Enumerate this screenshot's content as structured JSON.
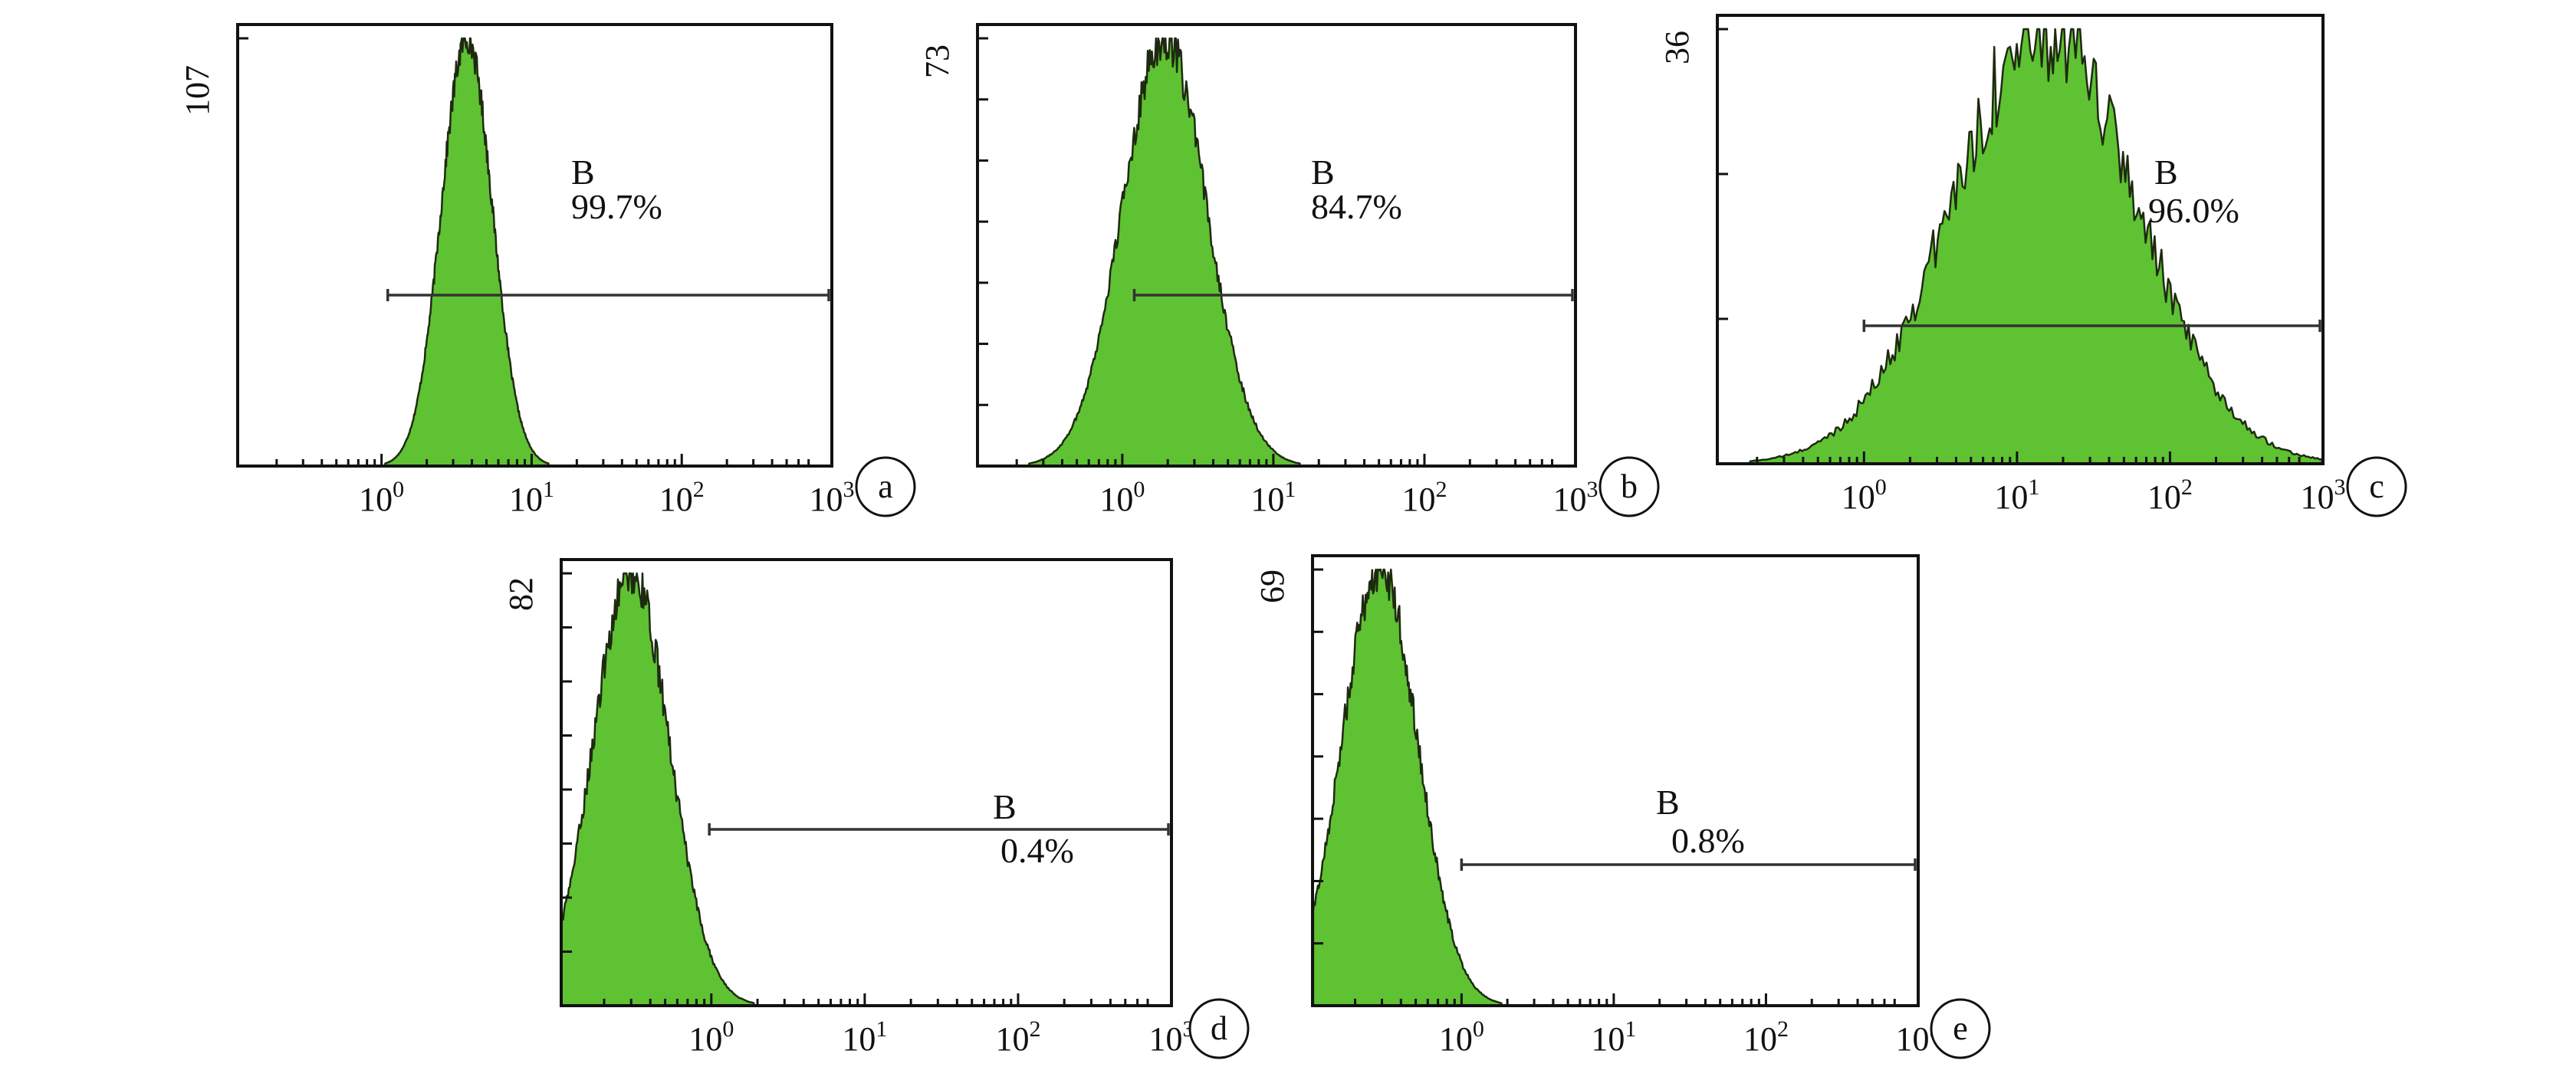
{
  "colors": {
    "fill": "#5ec232",
    "outline": "#1e2a10",
    "axis": "#111111"
  },
  "chart_data": [
    {
      "type": "area",
      "panel_label": "a",
      "x_scale": "log",
      "x_ticks": [
        {
          "value": 1,
          "base": "10",
          "exp": "0"
        },
        {
          "value": 10,
          "base": "10",
          "exp": "1"
        },
        {
          "value": 100,
          "base": "10",
          "exp": "2"
        },
        {
          "value": 1000,
          "base": "10",
          "exp": "3"
        }
      ],
      "xlim": [
        0.11,
        1000
      ],
      "ymax": 107,
      "ymax_label": "107",
      "y_tick_count": 1,
      "gate": {
        "name": "B",
        "percent": "99.7%",
        "from": 1.1,
        "to": 1000
      },
      "distribution": {
        "center": 3.7,
        "width": 0.17,
        "peak": 107,
        "noise": 0.035
      },
      "grid": false
    },
    {
      "type": "area",
      "panel_label": "b",
      "x_scale": "log",
      "x_ticks": [
        {
          "value": 1,
          "base": "10",
          "exp": "0"
        },
        {
          "value": 10,
          "base": "10",
          "exp": "1"
        },
        {
          "value": 100,
          "base": "10",
          "exp": "2"
        },
        {
          "value": 1000,
          "base": "10",
          "exp": "3"
        }
      ],
      "xlim": [
        0.11,
        1000
      ],
      "ymax": 73,
      "ymax_label": "73",
      "y_tick_count": 7,
      "gate": {
        "name": "B",
        "percent": "84.7%",
        "from": 1.2,
        "to": 1000
      },
      "distribution": {
        "center": 1.9,
        "width": 0.28,
        "peak": 73,
        "noise": 0.05
      },
      "grid": false
    },
    {
      "type": "area",
      "panel_label": "c",
      "x_scale": "log",
      "x_ticks": [
        {
          "value": 1,
          "base": "10",
          "exp": "0"
        },
        {
          "value": 10,
          "base": "10",
          "exp": "1"
        },
        {
          "value": 100,
          "base": "10",
          "exp": "2"
        },
        {
          "value": 1000,
          "base": "10",
          "exp": "3"
        }
      ],
      "xlim": [
        0.11,
        1000
      ],
      "ymax": 36,
      "ymax_label": "36",
      "y_tick_count": 3,
      "gate": {
        "name": "B",
        "percent": "96.0%",
        "from": 1,
        "to": 1000
      },
      "distribution": {
        "center": 15,
        "width": 0.6,
        "peak": 36,
        "noise": 0.12
      },
      "grid": false
    },
    {
      "type": "area",
      "panel_label": "d",
      "x_scale": "log",
      "x_ticks": [
        {
          "value": 1,
          "base": "10",
          "exp": "0"
        },
        {
          "value": 10,
          "base": "10",
          "exp": "1"
        },
        {
          "value": 100,
          "base": "10",
          "exp": "2"
        },
        {
          "value": 1000,
          "base": "10",
          "exp": "3"
        }
      ],
      "xlim": [
        0.105,
        1000
      ],
      "ymax": 82,
      "ymax_label": "82",
      "y_tick_count": 8,
      "gate": {
        "name": "B",
        "percent": "0.4%",
        "from": 0.97,
        "to": 1000
      },
      "distribution": {
        "center": 0.3,
        "width": 0.25,
        "peak": 82,
        "noise": 0.05
      },
      "grid": false
    },
    {
      "type": "area",
      "panel_label": "e",
      "x_scale": "log",
      "x_ticks": [
        {
          "value": 1,
          "base": "10",
          "exp": "0"
        },
        {
          "value": 10,
          "base": "10",
          "exp": "1"
        },
        {
          "value": 100,
          "base": "10",
          "exp": "2"
        },
        {
          "value": 1000,
          "base": "10",
          "exp": "3"
        }
      ],
      "xlim": [
        0.105,
        1000
      ],
      "ymax": 69,
      "ymax_label": "69",
      "y_tick_count": 7,
      "gate": {
        "name": "B",
        "percent": "0.8%",
        "from": 1,
        "to": 1000
      },
      "distribution": {
        "center": 0.29,
        "width": 0.25,
        "peak": 69,
        "noise": 0.05
      },
      "grid": false
    }
  ]
}
